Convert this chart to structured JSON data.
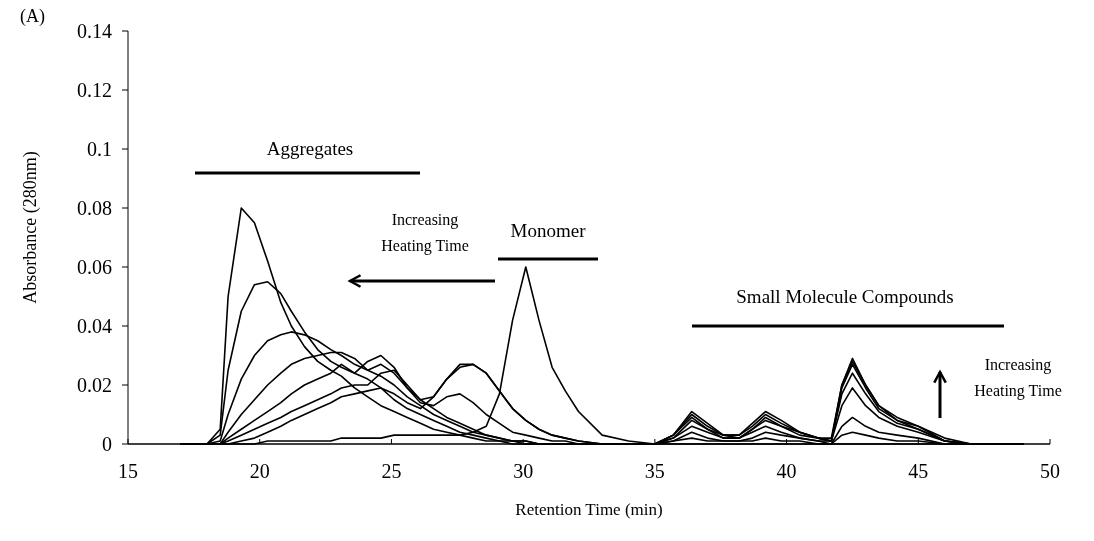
{
  "chart_data": {
    "type": "line",
    "title": "(A)",
    "xlabel": "Retention Time (min)",
    "ylabel": "Absorbance (280nm)",
    "x": [
      17,
      18,
      18.5,
      18.8,
      19.3,
      19.8,
      20.3,
      20.8,
      21.2,
      21.7,
      22.2,
      22.7,
      23.1,
      23.6,
      24.1,
      24.6,
      25.1,
      25.6,
      26.1,
      26.6,
      27.1,
      27.6,
      28.1,
      28.6,
      29.1,
      29.6,
      30.1,
      30.6,
      31.1,
      31.6,
      32.1,
      33,
      34,
      35,
      35.7,
      36.4,
      37,
      37.6,
      38.2,
      38.7,
      39.2,
      39.8,
      40.5,
      41.2,
      41.7,
      42.1,
      42.5,
      43,
      43.5,
      44.2,
      45,
      46,
      47,
      49
    ],
    "series": [
      {
        "color": "#000000",
        "values": [
          0,
          0,
          0.005,
          0.05,
          0.08,
          0.075,
          0.062,
          0.048,
          0.04,
          0.033,
          0.028,
          0.025,
          0.023,
          0.019,
          0.016,
          0.013,
          0.011,
          0.009,
          0.007,
          0.005,
          0.004,
          0.003,
          0.002,
          0.001,
          0.001,
          0,
          0,
          0,
          0,
          0,
          0,
          0,
          0,
          0,
          0.003,
          0.011,
          0.007,
          0.003,
          0.003,
          0.007,
          0.011,
          0.008,
          0.004,
          0.002,
          0.002,
          0.02,
          0.029,
          0.02,
          0.013,
          0.009,
          0.006,
          0.002,
          0,
          0
        ]
      },
      {
        "color": "#000000",
        "values": [
          0,
          0,
          0.003,
          0.025,
          0.045,
          0.054,
          0.055,
          0.051,
          0.045,
          0.038,
          0.032,
          0.028,
          0.026,
          0.024,
          0.022,
          0.019,
          0.015,
          0.012,
          0.01,
          0.008,
          0.006,
          0.004,
          0.003,
          0.002,
          0.001,
          0.001,
          0,
          0,
          0,
          0,
          0,
          0,
          0,
          0,
          0.003,
          0.01,
          0.006,
          0.003,
          0.003,
          0.006,
          0.01,
          0.007,
          0.004,
          0.002,
          0.001,
          0.02,
          0.028,
          0.02,
          0.013,
          0.008,
          0.006,
          0.001,
          0,
          0
        ]
      },
      {
        "color": "#000000",
        "values": [
          0,
          0,
          0.001,
          0.01,
          0.022,
          0.03,
          0.035,
          0.037,
          0.038,
          0.037,
          0.035,
          0.032,
          0.03,
          0.027,
          0.025,
          0.023,
          0.02,
          0.016,
          0.013,
          0.01,
          0.008,
          0.006,
          0.004,
          0.003,
          0.002,
          0.001,
          0.001,
          0,
          0,
          0,
          0,
          0,
          0,
          0,
          0.003,
          0.009,
          0.005,
          0.003,
          0.002,
          0.005,
          0.009,
          0.006,
          0.004,
          0.002,
          0.001,
          0.019,
          0.027,
          0.019,
          0.012,
          0.008,
          0.005,
          0.001,
          0,
          0
        ]
      },
      {
        "color": "#000000",
        "values": [
          0,
          0,
          0,
          0.004,
          0.01,
          0.015,
          0.02,
          0.024,
          0.027,
          0.029,
          0.03,
          0.031,
          0.031,
          0.029,
          0.025,
          0.027,
          0.024,
          0.019,
          0.015,
          0.012,
          0.009,
          0.007,
          0.005,
          0.003,
          0.002,
          0.001,
          0.001,
          0,
          0,
          0,
          0,
          0,
          0,
          0,
          0.002,
          0.008,
          0.005,
          0.002,
          0.002,
          0.005,
          0.008,
          0.006,
          0.003,
          0.002,
          0.001,
          0.017,
          0.024,
          0.017,
          0.011,
          0.007,
          0.005,
          0.001,
          0,
          0
        ]
      },
      {
        "color": "#000000",
        "values": [
          0,
          0,
          0,
          0.002,
          0.005,
          0.008,
          0.011,
          0.014,
          0.017,
          0.02,
          0.022,
          0.024,
          0.027,
          0.024,
          0.028,
          0.03,
          0.026,
          0.019,
          0.014,
          0.013,
          0.016,
          0.017,
          0.014,
          0.01,
          0.007,
          0.004,
          0.003,
          0.002,
          0.001,
          0.001,
          0,
          0,
          0,
          0,
          0.002,
          0.006,
          0.004,
          0.002,
          0.002,
          0.004,
          0.006,
          0.004,
          0.002,
          0.001,
          0.001,
          0.013,
          0.019,
          0.013,
          0.009,
          0.006,
          0.004,
          0.001,
          0,
          0
        ]
      },
      {
        "color": "#000000",
        "values": [
          0,
          0,
          0,
          0.001,
          0.003,
          0.005,
          0.007,
          0.009,
          0.011,
          0.013,
          0.015,
          0.017,
          0.019,
          0.02,
          0.02,
          0.024,
          0.025,
          0.02,
          0.015,
          0.016,
          0.022,
          0.026,
          0.027,
          0.024,
          0.018,
          0.012,
          0.008,
          0.005,
          0.003,
          0.002,
          0.001,
          0,
          0,
          0,
          0.001,
          0.004,
          0.002,
          0.001,
          0.001,
          0.002,
          0.004,
          0.003,
          0.002,
          0.001,
          0,
          0.006,
          0.009,
          0.006,
          0.004,
          0.003,
          0.002,
          0,
          0,
          0
        ]
      },
      {
        "color": "#000000",
        "values": [
          0,
          0,
          0,
          0,
          0.001,
          0.002,
          0.004,
          0.006,
          0.008,
          0.01,
          0.012,
          0.014,
          0.016,
          0.017,
          0.018,
          0.019,
          0.017,
          0.014,
          0.012,
          0.016,
          0.022,
          0.027,
          0.027,
          0.024,
          0.018,
          0.012,
          0.008,
          0.005,
          0.003,
          0.002,
          0.001,
          0,
          0,
          0,
          0.001,
          0.002,
          0.001,
          0.001,
          0.001,
          0.001,
          0.002,
          0.001,
          0.001,
          0,
          0,
          0.003,
          0.004,
          0.003,
          0.002,
          0.001,
          0.001,
          0,
          0,
          0
        ]
      },
      {
        "color": "#000000",
        "values": [
          0,
          0,
          0,
          0,
          0,
          0,
          0.001,
          0.001,
          0.001,
          0.001,
          0.001,
          0.001,
          0.002,
          0.002,
          0.002,
          0.002,
          0.003,
          0.003,
          0.003,
          0.003,
          0.003,
          0.003,
          0.004,
          0.006,
          0.017,
          0.042,
          0.06,
          0.042,
          0.026,
          0.018,
          0.011,
          0.003,
          0.001,
          0,
          0,
          0,
          0,
          0,
          0,
          0,
          0,
          0,
          0,
          0,
          0,
          0,
          0,
          0,
          0,
          0,
          0,
          0,
          0,
          0
        ]
      }
    ],
    "xlim": [
      15,
      50
    ],
    "xticks": [
      15,
      20,
      25,
      30,
      35,
      40,
      45,
      50
    ],
    "ylim": [
      0,
      0.14
    ],
    "yticks": [
      0,
      0.02,
      0.04,
      0.06,
      0.08,
      0.1,
      0.12,
      0.14
    ],
    "grid": false,
    "marker": "none",
    "line_style": "solid",
    "annotations": [
      "Aggregates",
      "Monomer",
      "Small Molecule Compounds",
      "Increasing Heating Time",
      "Increasing Heating Time"
    ]
  }
}
